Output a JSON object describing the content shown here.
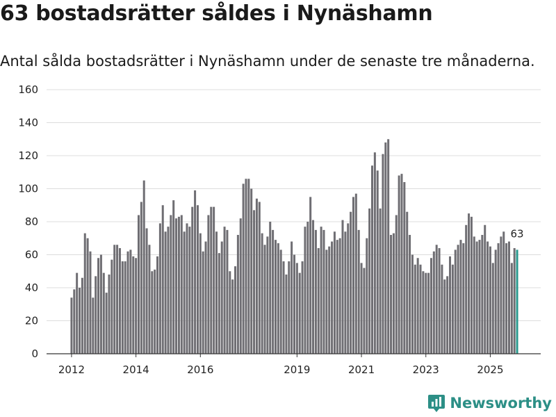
{
  "chart_data": {
    "type": "bar",
    "title": "63 bostadsrätter såldes i Nynäshamn",
    "subtitle": "Antal sålda bostadsrätter i Nynäshamn under de senaste tre månaderna.",
    "ylim": [
      0,
      160
    ],
    "yticks": [
      0,
      20,
      40,
      60,
      80,
      100,
      120,
      140,
      160
    ],
    "xticks": [
      {
        "label": "2012",
        "index": 0
      },
      {
        "label": "2014",
        "index": 24
      },
      {
        "label": "2016",
        "index": 48
      },
      {
        "label": "2019",
        "index": 84
      },
      {
        "label": "2021",
        "index": 108
      },
      {
        "label": "2023",
        "index": 132
      },
      {
        "label": "2025",
        "index": 156
      }
    ],
    "values": [
      34,
      39,
      49,
      40,
      46,
      73,
      70,
      62,
      34,
      47,
      58,
      60,
      49,
      37,
      48,
      57,
      66,
      66,
      64,
      56,
      56,
      62,
      63,
      59,
      58,
      84,
      92,
      105,
      76,
      66,
      50,
      51,
      59,
      79,
      90,
      74,
      77,
      84,
      93,
      82,
      83,
      84,
      74,
      79,
      77,
      89,
      99,
      90,
      73,
      62,
      68,
      84,
      89,
      89,
      74,
      61,
      68,
      77,
      75,
      50,
      45,
      53,
      72,
      82,
      103,
      106,
      106,
      100,
      87,
      94,
      92,
      73,
      66,
      71,
      80,
      75,
      69,
      67,
      63,
      56,
      48,
      56,
      68,
      60,
      55,
      49,
      56,
      77,
      80,
      95,
      81,
      75,
      64,
      77,
      75,
      63,
      65,
      68,
      74,
      69,
      70,
      81,
      74,
      79,
      86,
      95,
      97,
      75,
      55,
      52,
      70,
      88,
      114,
      122,
      111,
      88,
      121,
      128,
      130,
      72,
      73,
      84,
      108,
      109,
      104,
      86,
      72,
      60,
      54,
      58,
      54,
      50,
      49,
      49,
      58,
      62,
      66,
      64,
      54,
      45,
      47,
      59,
      54,
      63,
      66,
      69,
      67,
      78,
      85,
      83,
      71,
      68,
      69,
      72,
      78,
      68,
      65,
      55,
      63,
      67,
      71,
      74,
      67,
      68,
      55,
      64,
      63
    ],
    "highlight_index": 166,
    "highlight_label": "63",
    "bar_color": "#6f6e73",
    "highlight_color": "#2a9a8f"
  },
  "brand": {
    "name": "Newsworthy",
    "icon": "newsworthy-logo-icon",
    "color": "#2c8f86"
  }
}
